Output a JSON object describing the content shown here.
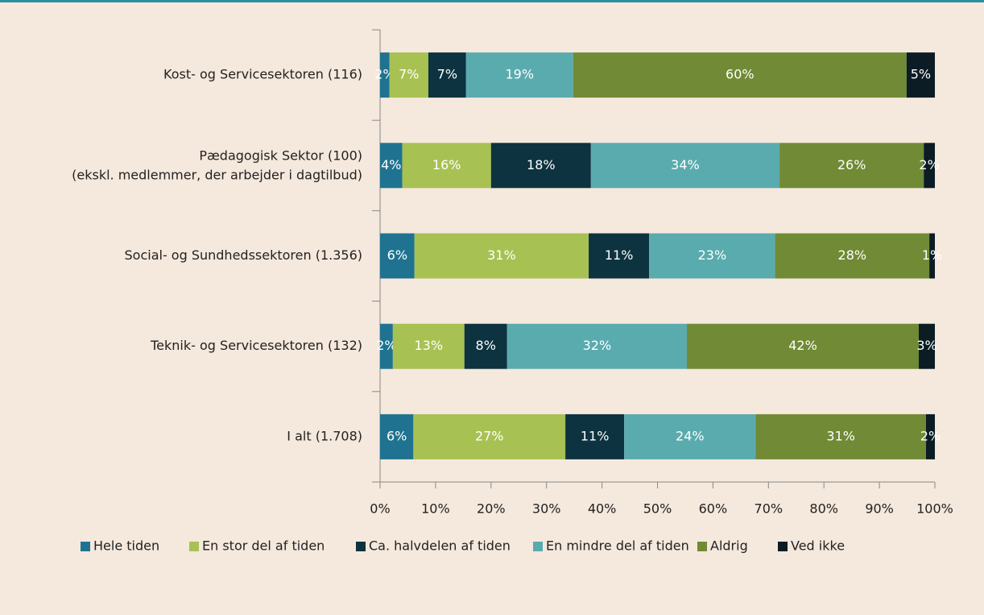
{
  "chart_data": {
    "type": "stacked-bar-horizontal",
    "categories": [
      "Kost- og Servicesektoren (116)",
      "Pædagogisk Sektor (100)\n(ekskl. medlemmer, der arbejder i dagtilbud)",
      "Social- og Sundhedssektoren (1.356)",
      "Teknik- og Servicesektoren (132)",
      "I alt (1.708)"
    ],
    "series": [
      {
        "name": "Hele tiden",
        "color": "#1f7391",
        "values": [
          1.7,
          4,
          6.2,
          2.3,
          6.0
        ],
        "value_labels": [
          "2%",
          "4%",
          "6%",
          "2%",
          "6%"
        ]
      },
      {
        "name": "En stor del af tiden",
        "color": "#a8c153",
        "values": [
          7.0,
          16,
          31.4,
          12.9,
          27.4
        ],
        "value_labels": [
          "7%",
          "16%",
          "31%",
          "13%",
          "27%"
        ]
      },
      {
        "name": "Ca. halvdelen af tiden",
        "color": "#0d3340",
        "values": [
          6.8,
          18,
          10.9,
          7.7,
          10.6
        ],
        "value_labels": [
          "7%",
          "18%",
          "11%",
          "8%",
          "11%"
        ]
      },
      {
        "name": "En mindre del af tiden",
        "color": "#5aabae",
        "values": [
          19.3,
          34,
          22.7,
          32.4,
          23.7
        ],
        "value_labels": [
          "19%",
          "34%",
          "23%",
          "32%",
          "24%"
        ]
      },
      {
        "name": "Aldrig",
        "color": "#718a35",
        "values": [
          60.1,
          26,
          27.8,
          41.8,
          30.7
        ],
        "value_labels": [
          "60%",
          "26%",
          "28%",
          "42%",
          "31%"
        ]
      },
      {
        "name": "Ved ikke",
        "color": "#0b1c24",
        "values": [
          5.1,
          2,
          1.0,
          2.9,
          1.6
        ],
        "value_labels": [
          "5%",
          "2%",
          "1%",
          "3%",
          "2%"
        ]
      }
    ],
    "xlim": [
      0,
      100
    ],
    "xticks": [
      {
        "value": 0,
        "label": "0%"
      },
      {
        "value": 10,
        "label": "10%"
      },
      {
        "value": 20,
        "label": "20%"
      },
      {
        "value": 30,
        "label": "30%"
      },
      {
        "value": 40,
        "label": "40%"
      },
      {
        "value": 50,
        "label": "50%"
      },
      {
        "value": 60,
        "label": "60%"
      },
      {
        "value": 70,
        "label": "70%"
      },
      {
        "value": 80,
        "label": "80%"
      },
      {
        "value": 90,
        "label": "90%"
      },
      {
        "value": 100,
        "label": "100%"
      }
    ],
    "legend": "bottom"
  }
}
